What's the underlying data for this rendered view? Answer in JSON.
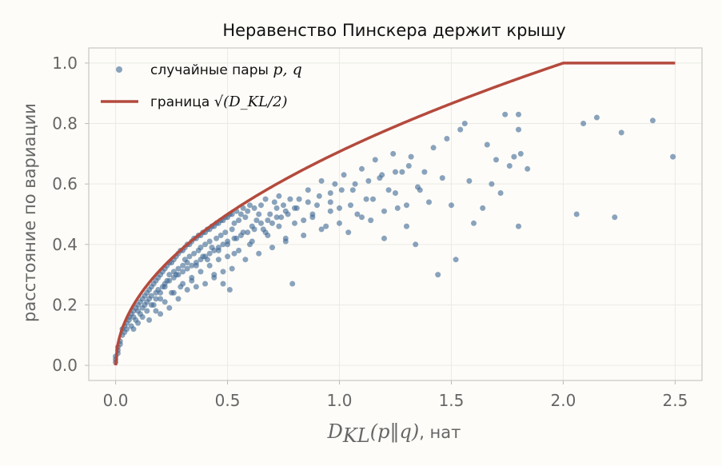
{
  "chart_data": {
    "type": "scatter",
    "title": "Неравенство Пинскера держит крышу",
    "ylabel": "расстояние по вариации",
    "xlabel": {
      "math": "D",
      "math_sub": "KL",
      "math_args": "(p‖q)",
      "unit": ", нат"
    },
    "xlim": [
      -0.12,
      2.62
    ],
    "ylim": [
      -0.05,
      1.05
    ],
    "x_ticks": [
      {
        "value": 0.0,
        "label": "0.0"
      },
      {
        "value": 0.5,
        "label": "0.5"
      },
      {
        "value": 1.0,
        "label": "1.0"
      },
      {
        "value": 1.5,
        "label": "1.5"
      },
      {
        "value": 2.0,
        "label": "2.0"
      },
      {
        "value": 2.5,
        "label": "2.5"
      }
    ],
    "y_ticks": [
      {
        "value": 0.0,
        "label": "0.0"
      },
      {
        "value": 0.2,
        "label": "0.2"
      },
      {
        "value": 0.4,
        "label": "0.4"
      },
      {
        "value": 0.6,
        "label": "0.6"
      },
      {
        "value": 0.8,
        "label": "0.8"
      },
      {
        "value": 1.0,
        "label": "1.0"
      }
    ],
    "grid": true,
    "legend_position": "top-left",
    "colors": {
      "points": "#3d6895",
      "bound": "#b44a3d",
      "background": "#fdfcf8",
      "frame": "#c8c8c4",
      "grid": "#ebebe6"
    },
    "series": [
      {
        "name": "случайные пары",
        "name_math": "p, q",
        "kind": "scatter",
        "points": [
          [
            0.0,
            0.01
          ],
          [
            0.0,
            0.02
          ],
          [
            0.0,
            0.03
          ],
          [
            0.01,
            0.04
          ],
          [
            0.01,
            0.06
          ],
          [
            0.01,
            0.05
          ],
          [
            0.02,
            0.08
          ],
          [
            0.02,
            0.07
          ],
          [
            0.03,
            0.1
          ],
          [
            0.03,
            0.12
          ],
          [
            0.04,
            0.11
          ],
          [
            0.04,
            0.13
          ],
          [
            0.05,
            0.14
          ],
          [
            0.05,
            0.12
          ],
          [
            0.06,
            0.16
          ],
          [
            0.06,
            0.15
          ],
          [
            0.07,
            0.17
          ],
          [
            0.07,
            0.13
          ],
          [
            0.08,
            0.18
          ],
          [
            0.08,
            0.16
          ],
          [
            0.09,
            0.19
          ],
          [
            0.09,
            0.15
          ],
          [
            0.1,
            0.2
          ],
          [
            0.1,
            0.18
          ],
          [
            0.11,
            0.21
          ],
          [
            0.11,
            0.17
          ],
          [
            0.12,
            0.22
          ],
          [
            0.12,
            0.19
          ],
          [
            0.13,
            0.23
          ],
          [
            0.13,
            0.2
          ],
          [
            0.14,
            0.24
          ],
          [
            0.14,
            0.21
          ],
          [
            0.15,
            0.25
          ],
          [
            0.15,
            0.22
          ],
          [
            0.16,
            0.26
          ],
          [
            0.16,
            0.23
          ],
          [
            0.17,
            0.27
          ],
          [
            0.17,
            0.2
          ],
          [
            0.18,
            0.28
          ],
          [
            0.18,
            0.24
          ],
          [
            0.19,
            0.29
          ],
          [
            0.19,
            0.25
          ],
          [
            0.2,
            0.3
          ],
          [
            0.2,
            0.22
          ],
          [
            0.21,
            0.31
          ],
          [
            0.21,
            0.26
          ],
          [
            0.22,
            0.32
          ],
          [
            0.22,
            0.27
          ],
          [
            0.23,
            0.33
          ],
          [
            0.23,
            0.28
          ],
          [
            0.24,
            0.34
          ],
          [
            0.24,
            0.3
          ],
          [
            0.25,
            0.34
          ],
          [
            0.25,
            0.24
          ],
          [
            0.26,
            0.35
          ],
          [
            0.26,
            0.31
          ],
          [
            0.27,
            0.36
          ],
          [
            0.27,
            0.3
          ],
          [
            0.28,
            0.37
          ],
          [
            0.28,
            0.32
          ],
          [
            0.29,
            0.38
          ],
          [
            0.29,
            0.26
          ],
          [
            0.3,
            0.38
          ],
          [
            0.3,
            0.33
          ],
          [
            0.31,
            0.39
          ],
          [
            0.31,
            0.35
          ],
          [
            0.32,
            0.4
          ],
          [
            0.32,
            0.34
          ],
          [
            0.33,
            0.4
          ],
          [
            0.33,
            0.36
          ],
          [
            0.34,
            0.41
          ],
          [
            0.34,
            0.29
          ],
          [
            0.35,
            0.42
          ],
          [
            0.35,
            0.37
          ],
          [
            0.36,
            0.42
          ],
          [
            0.36,
            0.33
          ],
          [
            0.37,
            0.43
          ],
          [
            0.37,
            0.38
          ],
          [
            0.38,
            0.43
          ],
          [
            0.38,
            0.39
          ],
          [
            0.39,
            0.44
          ],
          [
            0.39,
            0.36
          ],
          [
            0.4,
            0.44
          ],
          [
            0.4,
            0.4
          ],
          [
            0.41,
            0.45
          ],
          [
            0.41,
            0.35
          ],
          [
            0.42,
            0.45
          ],
          [
            0.42,
            0.41
          ],
          [
            0.43,
            0.46
          ],
          [
            0.43,
            0.39
          ],
          [
            0.44,
            0.46
          ],
          [
            0.44,
            0.29
          ],
          [
            0.45,
            0.47
          ],
          [
            0.45,
            0.42
          ],
          [
            0.46,
            0.47
          ],
          [
            0.46,
            0.38
          ],
          [
            0.47,
            0.48
          ],
          [
            0.47,
            0.43
          ],
          [
            0.48,
            0.48
          ],
          [
            0.48,
            0.27
          ],
          [
            0.49,
            0.49
          ],
          [
            0.49,
            0.44
          ],
          [
            0.5,
            0.49
          ],
          [
            0.5,
            0.41
          ],
          [
            0.51,
            0.5
          ],
          [
            0.51,
            0.25
          ],
          [
            0.52,
            0.5
          ],
          [
            0.52,
            0.45
          ],
          [
            0.53,
            0.47
          ],
          [
            0.53,
            0.37
          ],
          [
            0.54,
            0.51
          ],
          [
            0.54,
            0.42
          ],
          [
            0.55,
            0.48
          ],
          [
            0.56,
            0.5
          ],
          [
            0.57,
            0.52
          ],
          [
            0.57,
            0.44
          ],
          [
            0.58,
            0.49
          ],
          [
            0.59,
            0.51
          ],
          [
            0.6,
            0.53
          ],
          [
            0.6,
            0.4
          ],
          [
            0.61,
            0.46
          ],
          [
            0.62,
            0.52
          ],
          [
            0.63,
            0.48
          ],
          [
            0.64,
            0.5
          ],
          [
            0.65,
            0.53
          ],
          [
            0.66,
            0.45
          ],
          [
            0.67,
            0.55
          ],
          [
            0.68,
            0.43
          ],
          [
            0.69,
            0.5
          ],
          [
            0.7,
            0.47
          ],
          [
            0.71,
            0.54
          ],
          [
            0.72,
            0.52
          ],
          [
            0.73,
            0.56
          ],
          [
            0.74,
            0.49
          ],
          [
            0.75,
            0.53
          ],
          [
            0.76,
            0.42
          ],
          [
            0.77,
            0.5
          ],
          [
            0.78,
            0.55
          ],
          [
            0.79,
            0.27
          ],
          [
            0.8,
            0.52
          ],
          [
            0.82,
            0.55
          ],
          [
            0.84,
            0.48
          ],
          [
            0.86,
            0.58
          ],
          [
            0.88,
            0.5
          ],
          [
            0.9,
            0.53
          ],
          [
            0.92,
            0.61
          ],
          [
            0.94,
            0.46
          ],
          [
            0.96,
            0.54
          ],
          [
            0.98,
            0.6
          ],
          [
            1.0,
            0.52
          ],
          [
            1.02,
            0.63
          ],
          [
            1.04,
            0.44
          ],
          [
            1.06,
            0.58
          ],
          [
            1.08,
            0.5
          ],
          [
            1.1,
            0.65
          ],
          [
            1.12,
            0.55
          ],
          [
            1.14,
            0.48
          ],
          [
            1.16,
            0.68
          ],
          [
            1.18,
            0.62
          ],
          [
            1.2,
            0.42
          ],
          [
            1.22,
            0.58
          ],
          [
            1.24,
            0.7
          ],
          [
            1.26,
            0.52
          ],
          [
            1.28,
            0.64
          ],
          [
            1.3,
            0.46
          ],
          [
            1.32,
            0.69
          ],
          [
            1.34,
            0.4
          ],
          [
            1.36,
            0.58
          ],
          [
            1.38,
            0.64
          ],
          [
            1.4,
            0.54
          ],
          [
            1.42,
            0.72
          ],
          [
            1.44,
            0.3
          ],
          [
            1.46,
            0.62
          ],
          [
            1.48,
            0.75
          ],
          [
            1.5,
            0.53
          ],
          [
            1.52,
            0.35
          ],
          [
            1.54,
            0.78
          ],
          [
            1.56,
            0.8
          ],
          [
            1.58,
            0.61
          ],
          [
            1.6,
            0.47
          ],
          [
            1.64,
            0.52
          ],
          [
            1.66,
            0.73
          ],
          [
            1.68,
            0.6
          ],
          [
            1.7,
            0.68
          ],
          [
            1.72,
            0.57
          ],
          [
            1.74,
            0.83
          ],
          [
            1.76,
            0.66
          ],
          [
            1.78,
            0.69
          ],
          [
            1.8,
            0.46
          ],
          [
            1.8,
            0.78
          ],
          [
            1.8,
            0.83
          ],
          [
            1.81,
            0.7
          ],
          [
            1.84,
            0.65
          ],
          [
            2.06,
            0.5
          ],
          [
            2.09,
            0.8
          ],
          [
            2.15,
            0.82
          ],
          [
            2.23,
            0.49
          ],
          [
            2.26,
            0.77
          ],
          [
            2.4,
            0.81
          ],
          [
            2.49,
            0.69
          ],
          [
            0.15,
            0.15
          ],
          [
            0.18,
            0.18
          ],
          [
            0.2,
            0.17
          ],
          [
            0.22,
            0.21
          ],
          [
            0.24,
            0.19
          ],
          [
            0.26,
            0.24
          ],
          [
            0.28,
            0.22
          ],
          [
            0.3,
            0.27
          ],
          [
            0.32,
            0.25
          ],
          [
            0.34,
            0.28
          ],
          [
            0.36,
            0.26
          ],
          [
            0.38,
            0.31
          ],
          [
            0.4,
            0.27
          ],
          [
            0.42,
            0.33
          ],
          [
            0.44,
            0.3
          ],
          [
            0.46,
            0.35
          ],
          [
            0.48,
            0.31
          ],
          [
            0.5,
            0.36
          ],
          [
            0.52,
            0.32
          ],
          [
            0.55,
            0.38
          ],
          [
            0.58,
            0.35
          ],
          [
            0.61,
            0.41
          ],
          [
            0.64,
            0.37
          ],
          [
            0.67,
            0.44
          ],
          [
            0.7,
            0.39
          ],
          [
            0.73,
            0.46
          ],
          [
            0.76,
            0.41
          ],
          [
            0.8,
            0.47
          ],
          [
            0.84,
            0.43
          ],
          [
            0.88,
            0.49
          ],
          [
            0.92,
            0.45
          ],
          [
            0.96,
            0.51
          ],
          [
            1.0,
            0.47
          ],
          [
            1.05,
            0.53
          ],
          [
            1.1,
            0.49
          ],
          [
            1.15,
            0.55
          ],
          [
            1.2,
            0.51
          ],
          [
            1.25,
            0.57
          ],
          [
            1.3,
            0.53
          ],
          [
            1.35,
            0.59
          ],
          [
            0.08,
            0.12
          ],
          [
            0.1,
            0.14
          ],
          [
            0.12,
            0.16
          ],
          [
            0.14,
            0.18
          ],
          [
            0.16,
            0.2
          ],
          [
            0.18,
            0.22
          ],
          [
            0.2,
            0.24
          ],
          [
            0.22,
            0.26
          ],
          [
            0.24,
            0.28
          ],
          [
            0.26,
            0.29
          ],
          [
            0.28,
            0.3
          ],
          [
            0.3,
            0.31
          ],
          [
            0.32,
            0.32
          ],
          [
            0.34,
            0.33
          ],
          [
            0.36,
            0.34
          ],
          [
            0.38,
            0.35
          ],
          [
            0.4,
            0.36
          ],
          [
            0.42,
            0.37
          ],
          [
            0.44,
            0.38
          ],
          [
            0.46,
            0.39
          ],
          [
            0.48,
            0.4
          ],
          [
            0.5,
            0.4
          ],
          [
            0.53,
            0.42
          ],
          [
            0.56,
            0.43
          ],
          [
            0.59,
            0.44
          ],
          [
            0.62,
            0.45
          ],
          [
            0.65,
            0.47
          ],
          [
            0.68,
            0.48
          ],
          [
            0.72,
            0.49
          ],
          [
            0.76,
            0.51
          ],
          [
            0.81,
            0.52
          ],
          [
            0.86,
            0.54
          ],
          [
            0.91,
            0.56
          ],
          [
            0.96,
            0.57
          ],
          [
            1.01,
            0.58
          ],
          [
            1.07,
            0.6
          ],
          [
            1.13,
            0.61
          ],
          [
            1.19,
            0.63
          ],
          [
            1.25,
            0.64
          ],
          [
            1.31,
            0.66
          ]
        ]
      },
      {
        "name": "граница",
        "name_math": "√(D_KL/2)",
        "kind": "line",
        "formula": "min(1, sqrt(x/2))",
        "x_range": [
          0.0,
          2.5
        ]
      }
    ]
  }
}
